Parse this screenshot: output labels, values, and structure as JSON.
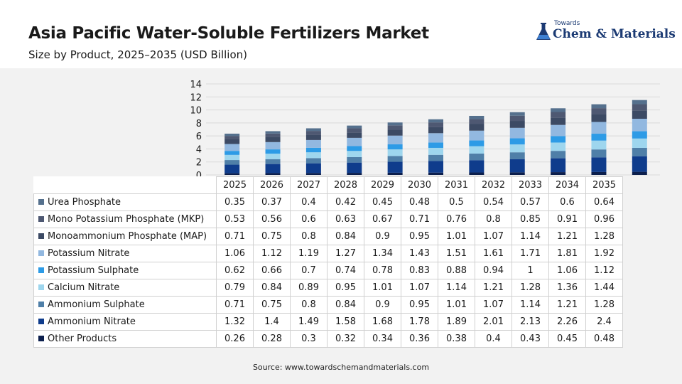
{
  "header": {
    "title": "Asia Pacific Water-Soluble Fertilizers Market",
    "subtitle": "Size by Product, 2025–2035 (USD Billion)"
  },
  "logo": {
    "line1": "Towards",
    "line2": "Chem & Materials",
    "color": "#1b3a73"
  },
  "source": "Source: www.towardschemandmaterials.com",
  "chart_data": {
    "type": "bar",
    "stacked": true,
    "categories": [
      "2025",
      "2026",
      "2027",
      "2028",
      "2029",
      "2030",
      "2031",
      "2032",
      "2033",
      "2034",
      "2035"
    ],
    "ylim": [
      0,
      14
    ],
    "yticks": [
      "0",
      "2",
      "4",
      "6",
      "8",
      "10",
      "12",
      "14"
    ],
    "grid": true,
    "series": [
      {
        "name": "Other Products",
        "color": "#0c1f4d",
        "values": [
          0.26,
          0.28,
          0.3,
          0.32,
          0.34,
          0.36,
          0.38,
          0.4,
          0.43,
          0.45,
          0.48
        ]
      },
      {
        "name": "Ammonium Nitrate",
        "color": "#0f3c8c",
        "values": [
          1.32,
          1.4,
          1.49,
          1.58,
          1.68,
          1.78,
          1.89,
          2.01,
          2.13,
          2.26,
          2.4
        ]
      },
      {
        "name": "Ammonium Sulphate",
        "color": "#4f7fa8",
        "values": [
          0.71,
          0.75,
          0.8,
          0.84,
          0.9,
          0.95,
          1.01,
          1.07,
          1.14,
          1.21,
          1.28
        ]
      },
      {
        "name": "Calcium Nitrate",
        "color": "#9ed6ee",
        "values": [
          0.79,
          0.84,
          0.89,
          0.95,
          1.01,
          1.07,
          1.14,
          1.21,
          1.28,
          1.36,
          1.44
        ]
      },
      {
        "name": "Potassium Sulphate",
        "color": "#2d9be6",
        "values": [
          0.62,
          0.66,
          0.7,
          0.74,
          0.78,
          0.83,
          0.88,
          0.94,
          1,
          1.06,
          1.12
        ]
      },
      {
        "name": "Potassium Nitrate",
        "color": "#92b8e0",
        "values": [
          1.06,
          1.12,
          1.19,
          1.27,
          1.34,
          1.43,
          1.51,
          1.61,
          1.71,
          1.81,
          1.92
        ]
      },
      {
        "name": "Monoammonium Phosphate (MAP)",
        "color": "#3c4a64",
        "values": [
          0.71,
          0.75,
          0.8,
          0.84,
          0.9,
          0.95,
          1.01,
          1.07,
          1.14,
          1.21,
          1.28
        ]
      },
      {
        "name": "Mono Potassium Phosphate (MKP)",
        "color": "#4e5872",
        "values": [
          0.53,
          0.56,
          0.6,
          0.63,
          0.67,
          0.71,
          0.76,
          0.8,
          0.85,
          0.91,
          0.96
        ]
      },
      {
        "name": "Urea Phosphate",
        "color": "#55708d",
        "values": [
          0.35,
          0.37,
          0.4,
          0.42,
          0.45,
          0.48,
          0.5,
          0.54,
          0.57,
          0.6,
          0.64
        ]
      }
    ],
    "table_values": {
      "Urea Phosphate": [
        "0.35",
        "0.37",
        "0.4",
        "0.42",
        "0.45",
        "0.48",
        "0.5",
        "0.54",
        "0.57",
        "0.6",
        "0.64"
      ],
      "Mono Potassium Phosphate (MKP)": [
        "0.53",
        "0.56",
        "0.6",
        "0.63",
        "0.67",
        "0.71",
        "0.76",
        "0.8",
        "0.85",
        "0.91",
        "0.96"
      ],
      "Monoammonium Phosphate (MAP)": [
        "0.71",
        "0.75",
        "0.8",
        "0.84",
        "0.9",
        "0.95",
        "1.01",
        "1.07",
        "1.14",
        "1.21",
        "1.28"
      ],
      "Potassium Nitrate": [
        "1.06",
        "1.12",
        "1.19",
        "1.27",
        "1.34",
        "1.43",
        "1.51",
        "1.61",
        "1.71",
        "1.81",
        "1.92"
      ],
      "Potassium Sulphate": [
        "0.62",
        "0.66",
        "0.7",
        "0.74",
        "0.78",
        "0.83",
        "0.88",
        "0.94",
        "1",
        "1.06",
        "1.12"
      ],
      "Calcium Nitrate": [
        "0.79",
        "0.84",
        "0.89",
        "0.95",
        "1.01",
        "1.07",
        "1.14",
        "1.21",
        "1.28",
        "1.36",
        "1.44"
      ],
      "Ammonium Sulphate": [
        "0.71",
        "0.75",
        "0.8",
        "0.84",
        "0.9",
        "0.95",
        "1.01",
        "1.07",
        "1.14",
        "1.21",
        "1.28"
      ],
      "Ammonium Nitrate": [
        "1.32",
        "1.4",
        "1.49",
        "1.58",
        "1.68",
        "1.78",
        "1.89",
        "2.01",
        "2.13",
        "2.26",
        "2.4"
      ],
      "Other Products": [
        "0.26",
        "0.28",
        "0.3",
        "0.32",
        "0.34",
        "0.36",
        "0.38",
        "0.4",
        "0.43",
        "0.45",
        "0.48"
      ]
    },
    "table_row_order": [
      "Urea Phosphate",
      "Mono Potassium Phosphate (MKP)",
      "Monoammonium Phosphate (MAP)",
      "Potassium Nitrate",
      "Potassium Sulphate",
      "Calcium Nitrate",
      "Ammonium Sulphate",
      "Ammonium Nitrate",
      "Other Products"
    ]
  }
}
